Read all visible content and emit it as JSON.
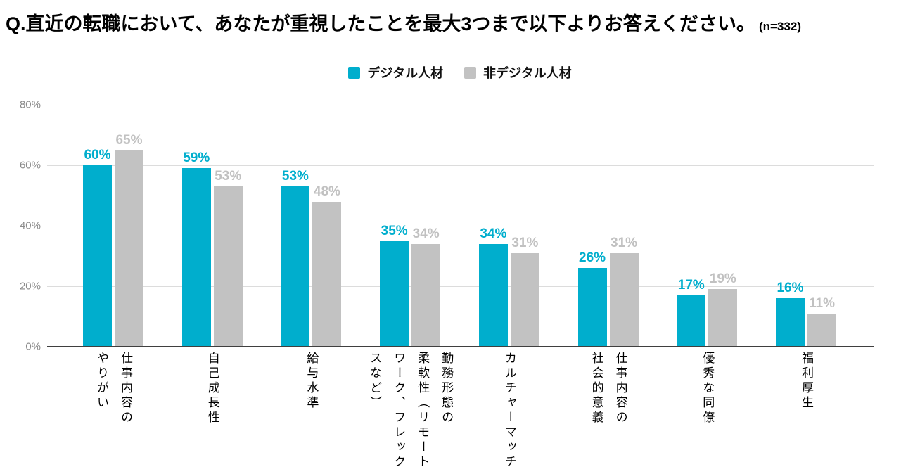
{
  "title": {
    "text": "Q.直近の転職において、あなたが重視したことを最大3つまで以下よりお答えください。",
    "sample_size": "(n=332)"
  },
  "legend": {
    "items": [
      {
        "label": "デジタル人材",
        "color": "#00AECD"
      },
      {
        "label": "非デジタル人材",
        "color": "#C2C2C2"
      }
    ]
  },
  "chart_data": {
    "type": "bar",
    "title": "Q.直近の転職において、あなたが重視したことを最大3つまで以下よりお答えください。 (n=332)",
    "categories": [
      "仕事内容のやりがい",
      "自己成長性",
      "給与水準",
      "勤務形態の柔軟性（リモートワーク、フレックスなど）",
      "カルチャーマッチ",
      "仕事内容の社会的意義",
      "優秀な同僚",
      "福利厚生"
    ],
    "category_lines": [
      [
        "仕事内容の",
        "やりがい"
      ],
      [
        "自己成長性"
      ],
      [
        "給与水準"
      ],
      [
        "勤務形態の",
        "柔軟性（リモート",
        "ワーク、フレック",
        "スなど）"
      ],
      [
        "カルチャーマッチ"
      ],
      [
        "仕事内容の",
        "社会的意義"
      ],
      [
        "優秀な同僚"
      ],
      [
        "福利厚生"
      ]
    ],
    "series": [
      {
        "name": "デジタル人材",
        "color": "#00AECD",
        "label_color": "#00AECD",
        "values": [
          60,
          59,
          53,
          35,
          34,
          26,
          17,
          16
        ]
      },
      {
        "name": "非デジタル人材",
        "color": "#C2C2C2",
        "label_color": "#C1C1C1",
        "values": [
          65,
          53,
          48,
          34,
          31,
          31,
          19,
          11
        ]
      }
    ],
    "xlabel": "",
    "ylabel": "",
    "ylim": [
      0,
      80
    ],
    "yticks": [
      0,
      20,
      40,
      60,
      80
    ],
    "ytick_labels": [
      "0%",
      "20%",
      "40%",
      "60%",
      "80%"
    ],
    "grid": true,
    "legend_position": "top-center",
    "value_suffix": "%"
  }
}
